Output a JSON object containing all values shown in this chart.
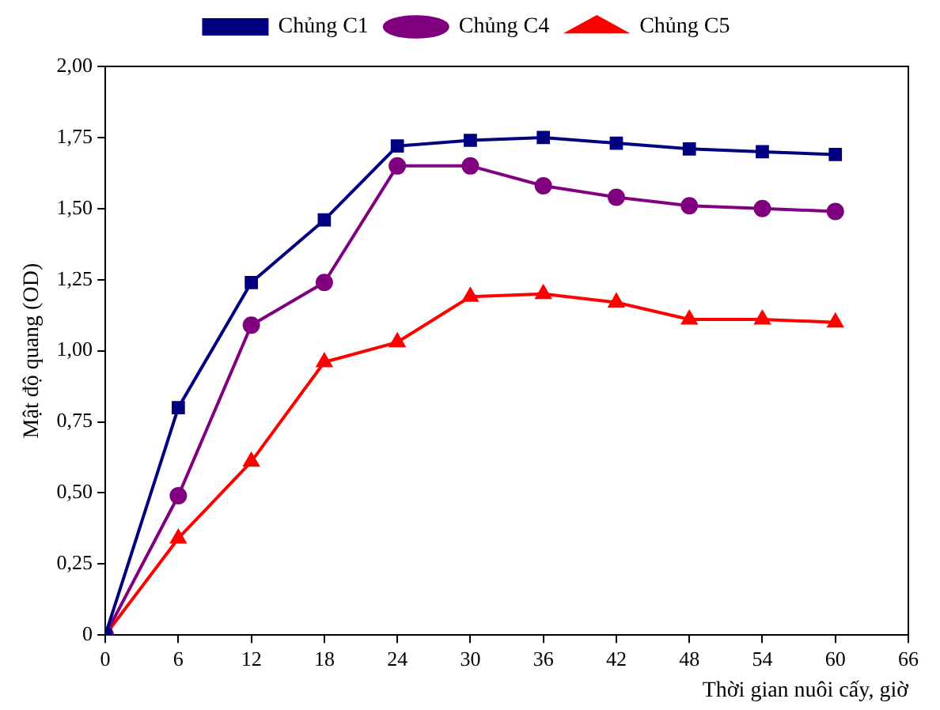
{
  "chart_data": {
    "type": "line",
    "xlabel": "Thời gian nuôi cấy, giờ",
    "ylabel": "Mật độ quang (OD)",
    "x": [
      0,
      6,
      12,
      18,
      24,
      30,
      36,
      42,
      48,
      54,
      60
    ],
    "series": [
      {
        "name": "Chủng C1",
        "color": "#000080",
        "marker": "square",
        "values": [
          0,
          0.8,
          1.24,
          1.46,
          1.72,
          1.74,
          1.75,
          1.73,
          1.71,
          1.7,
          1.69
        ]
      },
      {
        "name": "Chủng C4",
        "color": "#800080",
        "marker": "circle",
        "values": [
          0,
          0.49,
          1.09,
          1.24,
          1.65,
          1.65,
          1.58,
          1.54,
          1.51,
          1.5,
          1.49
        ]
      },
      {
        "name": "Chủng C5",
        "color": "#ff0000",
        "marker": "triangle",
        "values": [
          0,
          0.34,
          0.61,
          0.96,
          1.03,
          1.19,
          1.2,
          1.17,
          1.11,
          1.11,
          1.1
        ]
      }
    ],
    "xlim": [
      0,
      66
    ],
    "xticks": [
      0,
      6,
      12,
      18,
      24,
      30,
      36,
      42,
      48,
      54,
      60,
      66
    ],
    "ylim": [
      0,
      2
    ],
    "yticks": [
      0,
      {
        "value": 0.25,
        "label": "0,25"
      },
      {
        "value": 0.5,
        "label": "0,50"
      },
      {
        "value": 0.75,
        "label": "0,75"
      },
      {
        "value": 1,
        "label": "1,00"
      },
      {
        "value": 1.25,
        "label": "1,25"
      },
      {
        "value": 1.5,
        "label": "1,50"
      },
      {
        "value": 1.75,
        "label": "1,75"
      },
      {
        "value": 2,
        "label": "2,00"
      }
    ],
    "grid": false,
    "legend": "top",
    "line_style": "solid"
  }
}
